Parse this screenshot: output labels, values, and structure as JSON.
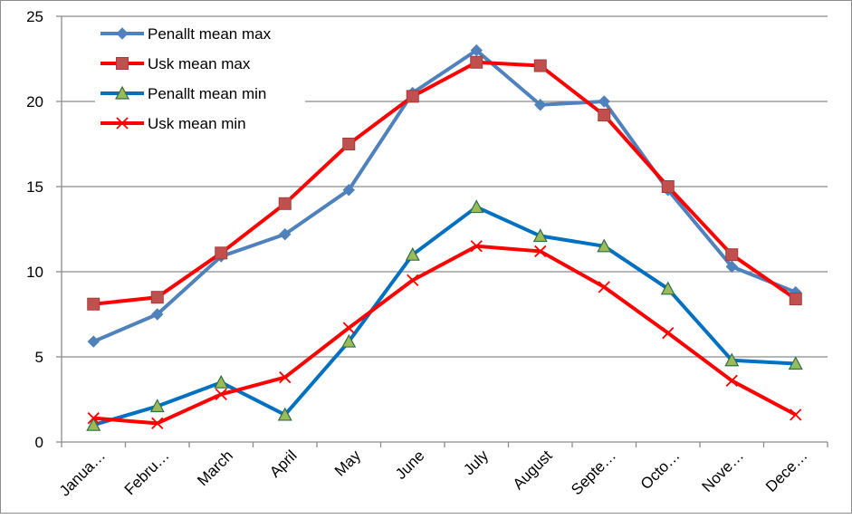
{
  "chart_data": {
    "type": "line",
    "title": "",
    "xlabel": "",
    "ylabel": "",
    "ylim": [
      0,
      25
    ],
    "yticks": [
      0,
      5,
      10,
      15,
      20,
      25
    ],
    "grid": true,
    "legend_position": "top-left",
    "categories": [
      "Janua…",
      "Febru…",
      "March",
      "April",
      "May",
      "June",
      "July",
      "August",
      "Septe…",
      "Octo…",
      "Nove…",
      "Dece…"
    ],
    "series": [
      {
        "name": "Penallt mean max",
        "color": "#4f81bd",
        "marker": "diamond",
        "values": [
          5.9,
          7.5,
          10.9,
          12.2,
          14.8,
          20.5,
          23.0,
          19.8,
          20.0,
          14.8,
          10.3,
          8.8
        ]
      },
      {
        "name": "Usk mean max",
        "color": "#ff0000",
        "marker": "square",
        "values": [
          8.1,
          8.5,
          11.1,
          14.0,
          17.5,
          20.3,
          22.3,
          22.1,
          19.2,
          15.0,
          11.0,
          8.4
        ]
      },
      {
        "name": "Penallt mean min",
        "color": "#0070c0",
        "marker": "triangle",
        "values": [
          1.0,
          2.1,
          3.5,
          1.6,
          5.9,
          11.0,
          13.8,
          12.1,
          11.5,
          9.0,
          4.8,
          4.6
        ]
      },
      {
        "name": "Usk mean min",
        "color": "#ff0000",
        "marker": "cross",
        "values": [
          1.4,
          1.1,
          2.8,
          3.8,
          6.7,
          9.5,
          11.5,
          11.2,
          9.1,
          6.4,
          3.6,
          1.6
        ]
      }
    ]
  }
}
